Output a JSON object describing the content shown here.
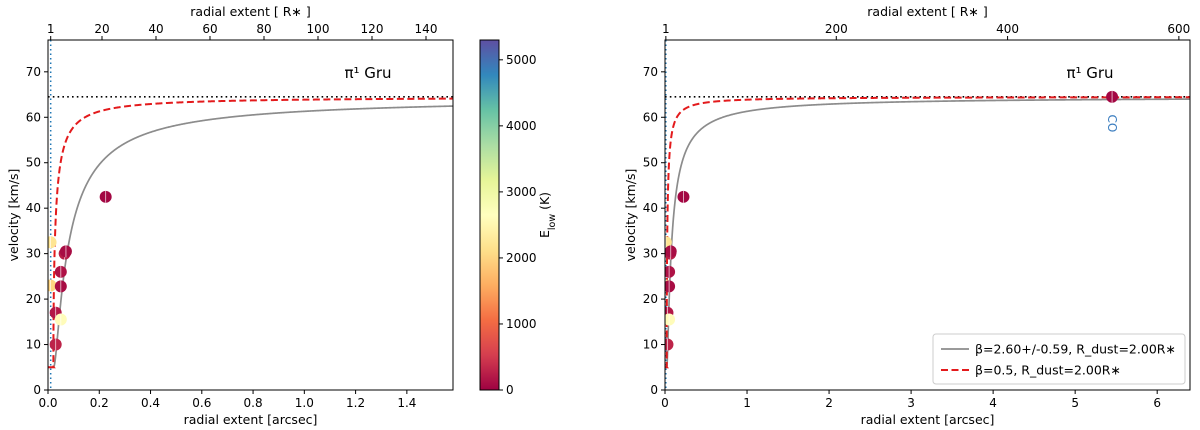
{
  "chart_data": [
    {
      "type": "scatter",
      "title": "π¹ Gru",
      "xlabel": "radial extent [arcsec]",
      "ylabel": "velocity [km/s]",
      "x2label": "radial extent [ R∗ ]",
      "xlim": [
        0,
        1.58
      ],
      "ylim": [
        0,
        77
      ],
      "x2lim": [
        0,
        150
      ],
      "xticks": [
        0.0,
        0.2,
        0.4,
        0.6,
        0.8,
        1.0,
        1.2,
        1.4
      ],
      "yticks": [
        0,
        10,
        20,
        30,
        40,
        50,
        60,
        70
      ],
      "x2ticks": [
        1,
        20,
        40,
        60,
        80,
        100,
        120,
        140
      ],
      "terminal_velocity": 64.5,
      "stellar_radius_arcsec": 0.0105,
      "points": [
        {
          "x": 0.01,
          "y": 32.5,
          "e": 2200
        },
        {
          "x": 0.01,
          "y": 23.0,
          "e": 2000
        },
        {
          "x": 0.03,
          "y": 17.0,
          "e": 200
        },
        {
          "x": 0.03,
          "y": 10.0,
          "e": 300
        },
        {
          "x": 0.05,
          "y": 15.5,
          "e": 2600
        },
        {
          "x": 0.05,
          "y": 26.0,
          "e": 150
        },
        {
          "x": 0.05,
          "y": 22.8,
          "e": 100
        },
        {
          "x": 0.065,
          "y": 30.0,
          "e": 250
        },
        {
          "x": 0.07,
          "y": 30.5,
          "e": 100
        },
        {
          "x": 0.225,
          "y": 42.5,
          "e": 50
        }
      ],
      "series": [
        {
          "name": "β=2.60+/-0.59, R_dust=2.00R∗",
          "color": "#8c8c8c",
          "style": "solid",
          "beta": 2.6,
          "v0": 5
        },
        {
          "name": "β=0.5, R_dust=2.00R∗",
          "color": "#e31a1c",
          "style": "dashed",
          "beta": 0.5,
          "v0": 5
        }
      ],
      "colorbar": {
        "label": "E",
        "label_sub": "low",
        "label_unit": " (K)",
        "min": 0,
        "max": 5300,
        "ticks": [
          0,
          1000,
          2000,
          3000,
          4000,
          5000
        ]
      }
    },
    {
      "type": "scatter",
      "title": "π¹ Gru",
      "xlabel": "radial extent [arcsec]",
      "ylabel": "velocity [km/s]",
      "x2label": "radial extent [ R∗ ]",
      "xlim": [
        0,
        6.4
      ],
      "ylim": [
        0,
        77
      ],
      "x2lim": [
        0,
        613
      ],
      "xticks": [
        0,
        1,
        2,
        3,
        4,
        5,
        6
      ],
      "yticks": [
        0,
        10,
        20,
        30,
        40,
        50,
        60,
        70
      ],
      "x2ticks": [
        1,
        200,
        400,
        600
      ],
      "terminal_velocity": 64.5,
      "stellar_radius_arcsec": 0.0105,
      "points": [
        {
          "x": 0.01,
          "y": 32.5,
          "e": 2200
        },
        {
          "x": 0.01,
          "y": 23.0,
          "e": 2000
        },
        {
          "x": 0.03,
          "y": 17.0,
          "e": 200
        },
        {
          "x": 0.03,
          "y": 10.0,
          "e": 300
        },
        {
          "x": 0.05,
          "y": 15.5,
          "e": 2600
        },
        {
          "x": 0.05,
          "y": 26.0,
          "e": 150
        },
        {
          "x": 0.05,
          "y": 22.8,
          "e": 100
        },
        {
          "x": 0.065,
          "y": 30.0,
          "e": 250
        },
        {
          "x": 0.07,
          "y": 30.5,
          "e": 100
        },
        {
          "x": 0.225,
          "y": 42.5,
          "e": 50
        },
        {
          "x": 5.45,
          "y": 64.5,
          "e": 50
        }
      ],
      "annotation": {
        "text": "CO",
        "x": 5.45,
        "y": 61.5
      },
      "series": [
        {
          "name": "β=2.60+/-0.59, R_dust=2.00R∗",
          "color": "#8c8c8c",
          "style": "solid",
          "beta": 2.6,
          "v0": 5
        },
        {
          "name": "β=0.5, R_dust=2.00R∗",
          "color": "#e31a1c",
          "style": "dashed",
          "beta": 0.5,
          "v0": 5
        }
      ],
      "legend": {
        "position": "lower-right"
      }
    }
  ]
}
